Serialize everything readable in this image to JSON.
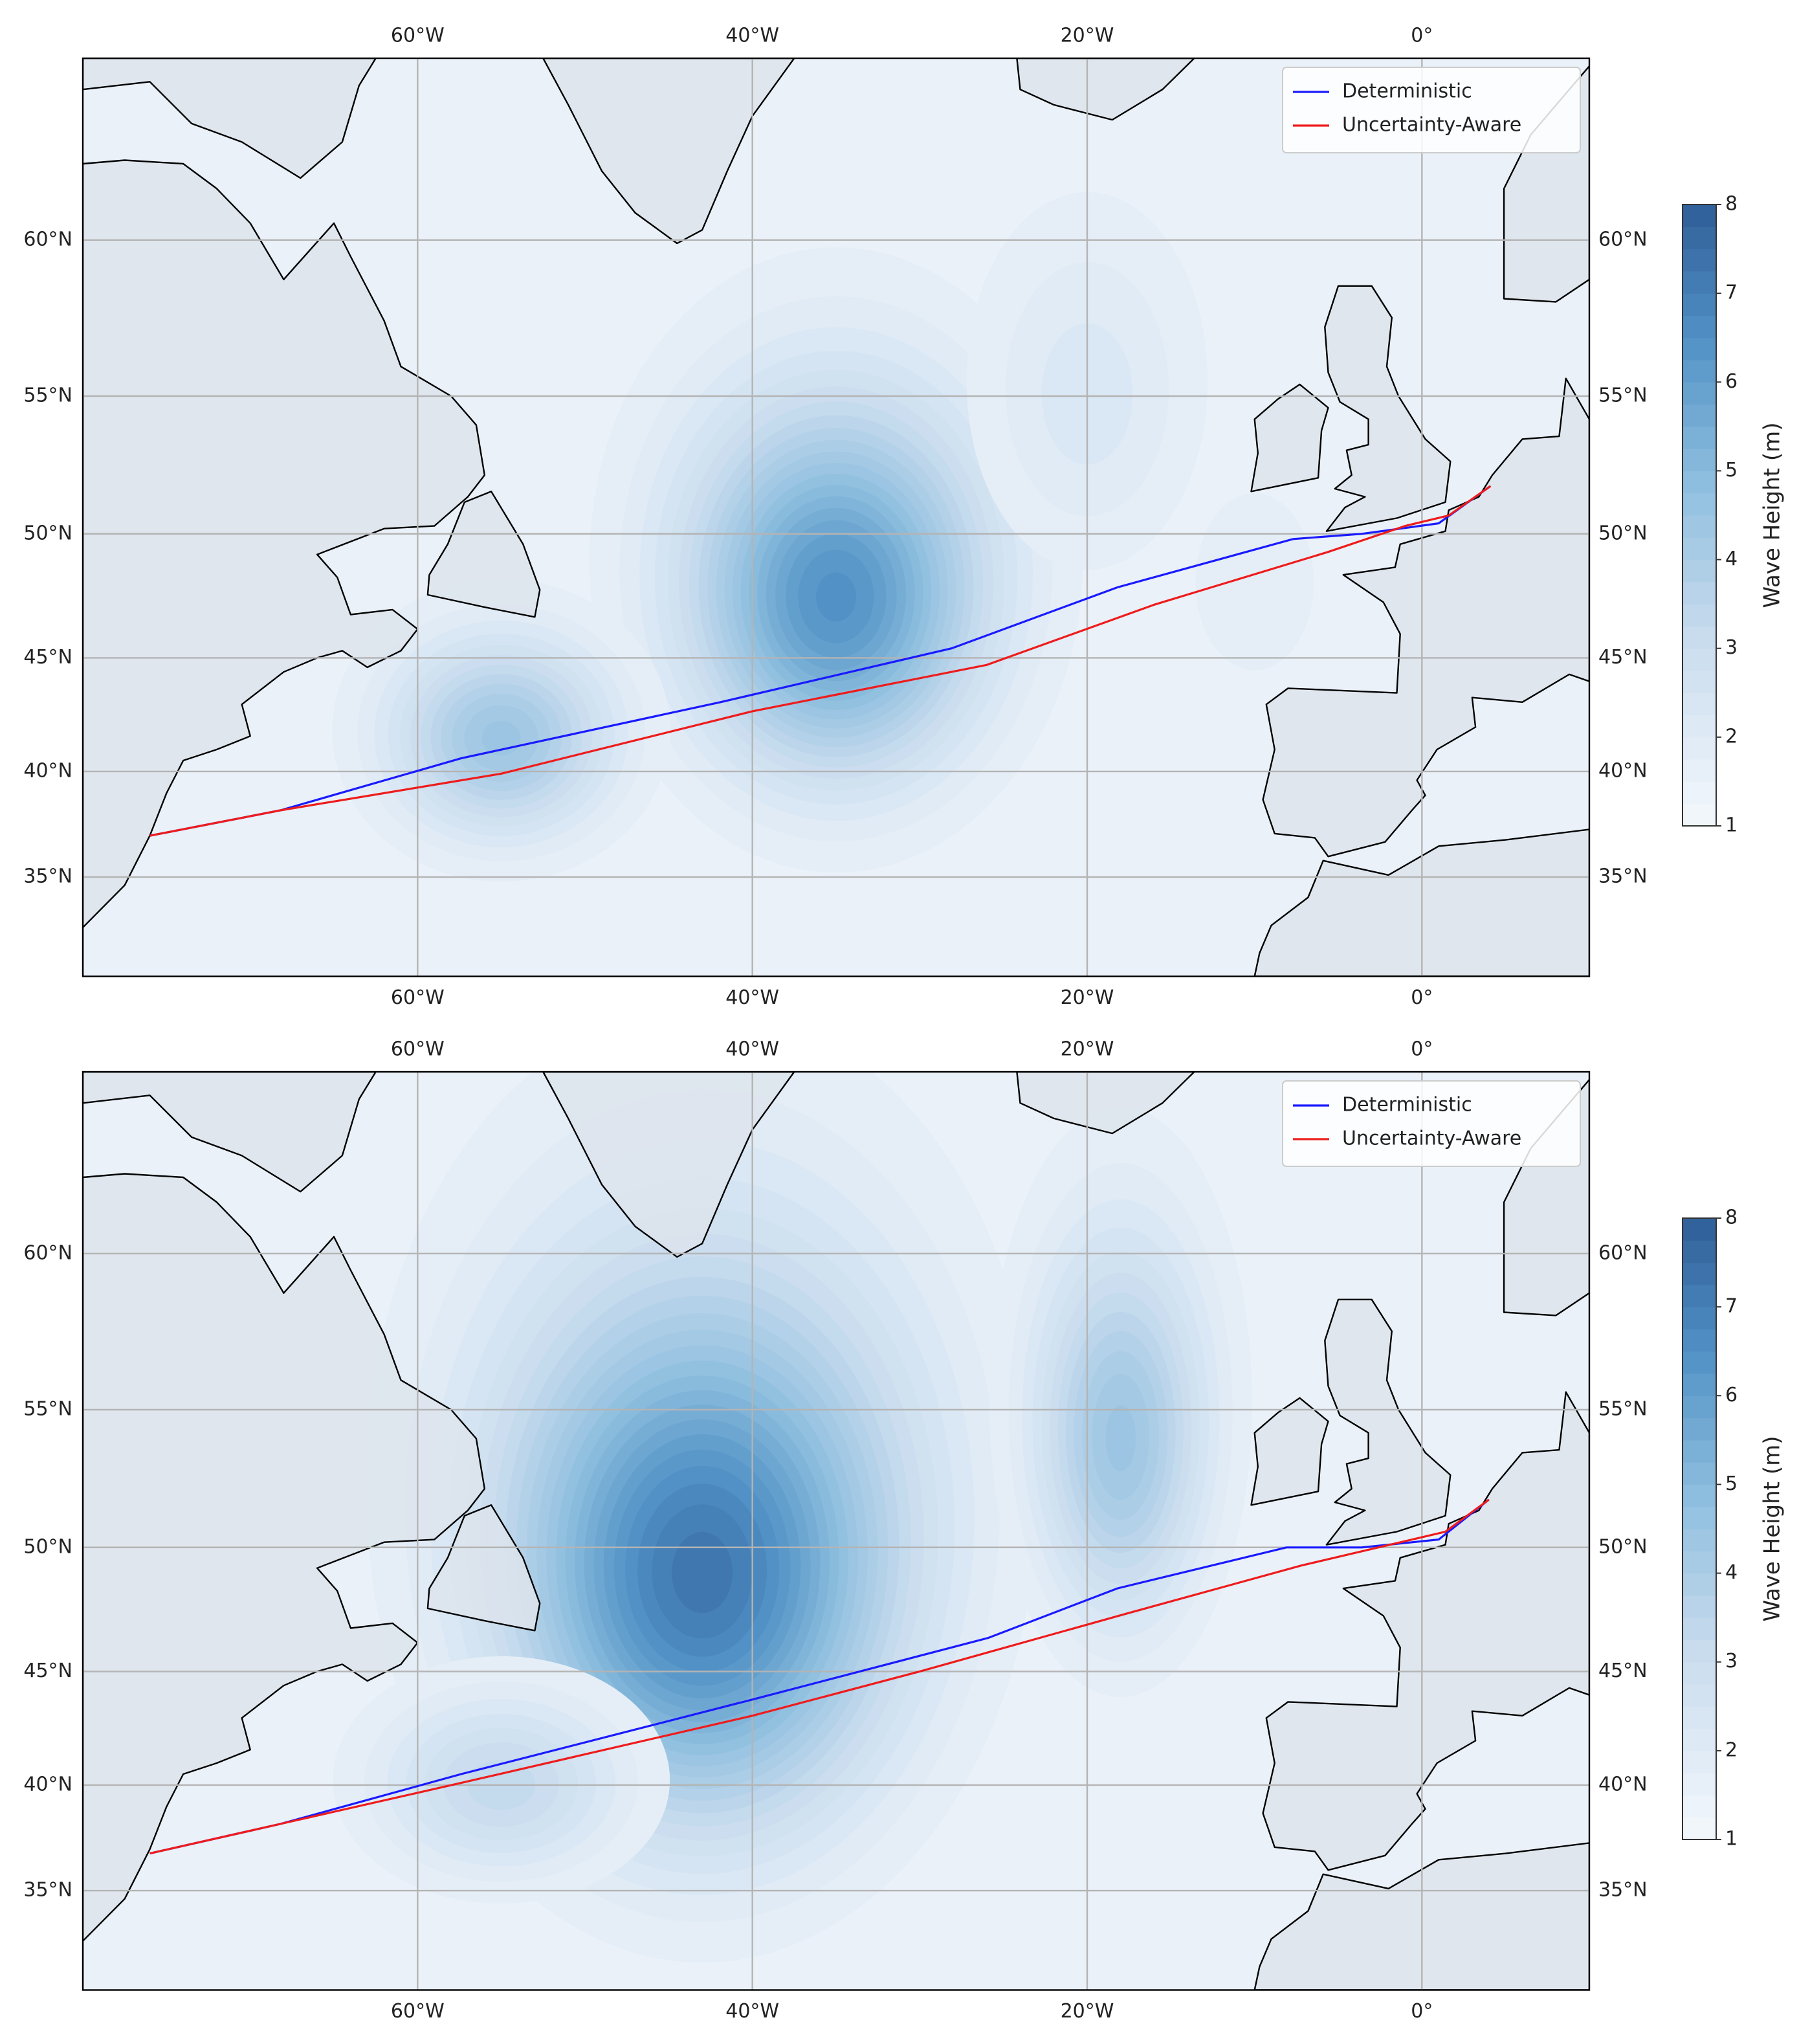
{
  "chart_data": [
    {
      "type": "map",
      "grid": true,
      "legend": "upper right",
      "xlim": [
        -80,
        10
      ],
      "ylim": [
        30,
        65
      ],
      "xticks": [
        {
          "value": -60,
          "label": "60°W"
        },
        {
          "value": -40,
          "label": "40°W"
        },
        {
          "value": -20,
          "label": "20°W"
        },
        {
          "value": 0,
          "label": "0°"
        }
      ],
      "yticks": [
        {
          "value": 35,
          "label": "35°N"
        },
        {
          "value": 40,
          "label": "40°N"
        },
        {
          "value": 45,
          "label": "45°N"
        },
        {
          "value": 50,
          "label": "50°N"
        },
        {
          "value": 55,
          "label": "55°N"
        },
        {
          "value": 60,
          "label": "60°N"
        }
      ],
      "wave_field": {
        "background": 1.5,
        "peaks": [
          {
            "lon": -35,
            "lat": 47.5,
            "height": 6.6,
            "spread_lon": 6,
            "spread_lat": 5
          },
          {
            "lon": -55,
            "lat": 41.5,
            "height": 4.6,
            "spread_lon": 4.5,
            "spread_lat": 3
          },
          {
            "lon": -20,
            "lat": 55,
            "height": 2.4,
            "spread_lon": 4.5,
            "spread_lat": 4
          },
          {
            "lon": -10,
            "lat": 48,
            "height": 2.0,
            "spread_lon": 3,
            "spread_lat": 3
          }
        ]
      },
      "colorbar": {
        "label": "Wave Height (m)",
        "clim": [
          1,
          8
        ],
        "ticks": [
          1,
          2,
          3,
          4,
          5,
          6,
          7,
          8
        ]
      },
      "series": [
        {
          "name": "Deterministic",
          "color": "#1a1aff",
          "lon": [
            -76,
            -68.2,
            -57.4,
            -41.9,
            -28.1,
            -18.2,
            -7.7,
            -3.6,
            1.0,
            4.1
          ],
          "lat": [
            37,
            38.2,
            40.6,
            43.1,
            45.4,
            47.9,
            49.8,
            50.0,
            50.4,
            51.8
          ]
        },
        {
          "name": "Uncertainty-Aware",
          "color": "#ee1c1c",
          "lon": [
            -76,
            -68.2,
            -55,
            -40,
            -26,
            -16,
            -5.6,
            -1,
            1.6,
            4.1
          ],
          "lat": [
            37,
            38.2,
            39.9,
            42.7,
            44.7,
            47.2,
            49.3,
            50.3,
            50.7,
            51.8
          ]
        }
      ]
    },
    {
      "type": "map",
      "grid": true,
      "legend": "upper right",
      "xlim": [
        -80,
        10
      ],
      "ylim": [
        30,
        65
      ],
      "xticks": [
        {
          "value": -60,
          "label": "60°W"
        },
        {
          "value": -40,
          "label": "40°W"
        },
        {
          "value": -20,
          "label": "20°W"
        },
        {
          "value": 0,
          "label": "0°"
        }
      ],
      "yticks": [
        {
          "value": 35,
          "label": "35°N"
        },
        {
          "value": 40,
          "label": "40°N"
        },
        {
          "value": 45,
          "label": "45°N"
        },
        {
          "value": 50,
          "label": "50°N"
        },
        {
          "value": 55,
          "label": "55°N"
        },
        {
          "value": 60,
          "label": "60°N"
        }
      ],
      "wave_field": {
        "background": 1.5,
        "peaks": [
          {
            "lon": -43,
            "lat": 49,
            "height": 7.4,
            "spread_lon": 8,
            "spread_lat": 7
          },
          {
            "lon": -18,
            "lat": 54,
            "height": 4.6,
            "spread_lon": 3.5,
            "spread_lat": 4.5
          },
          {
            "lon": -55,
            "lat": 40,
            "height": 3.4,
            "spread_lon": 5,
            "spread_lat": 2.8
          }
        ]
      },
      "colorbar": {
        "label": "Wave Height (m)",
        "clim": [
          1,
          8
        ],
        "ticks": [
          1,
          2,
          3,
          4,
          5,
          6,
          7,
          8
        ]
      },
      "series": [
        {
          "name": "Deterministic",
          "color": "#1a1aff",
          "lon": [
            -76,
            -68.2,
            -57.4,
            -40,
            -25.9,
            -18.2,
            -8.1,
            -3.6,
            1.0,
            4.0
          ],
          "lat": [
            36.8,
            38.2,
            40.5,
            43.8,
            46.4,
            48.4,
            50.0,
            50.0,
            50.3,
            51.8
          ]
        },
        {
          "name": "Uncertainty-Aware",
          "color": "#ee1c1c",
          "lon": [
            -76,
            -68.2,
            -57.4,
            -40,
            -30,
            -17.6,
            -7.2,
            1.4,
            4.0
          ],
          "lat": [
            36.8,
            38.2,
            40.1,
            43.1,
            45.0,
            47.4,
            49.3,
            50.6,
            51.8
          ]
        }
      ]
    }
  ]
}
